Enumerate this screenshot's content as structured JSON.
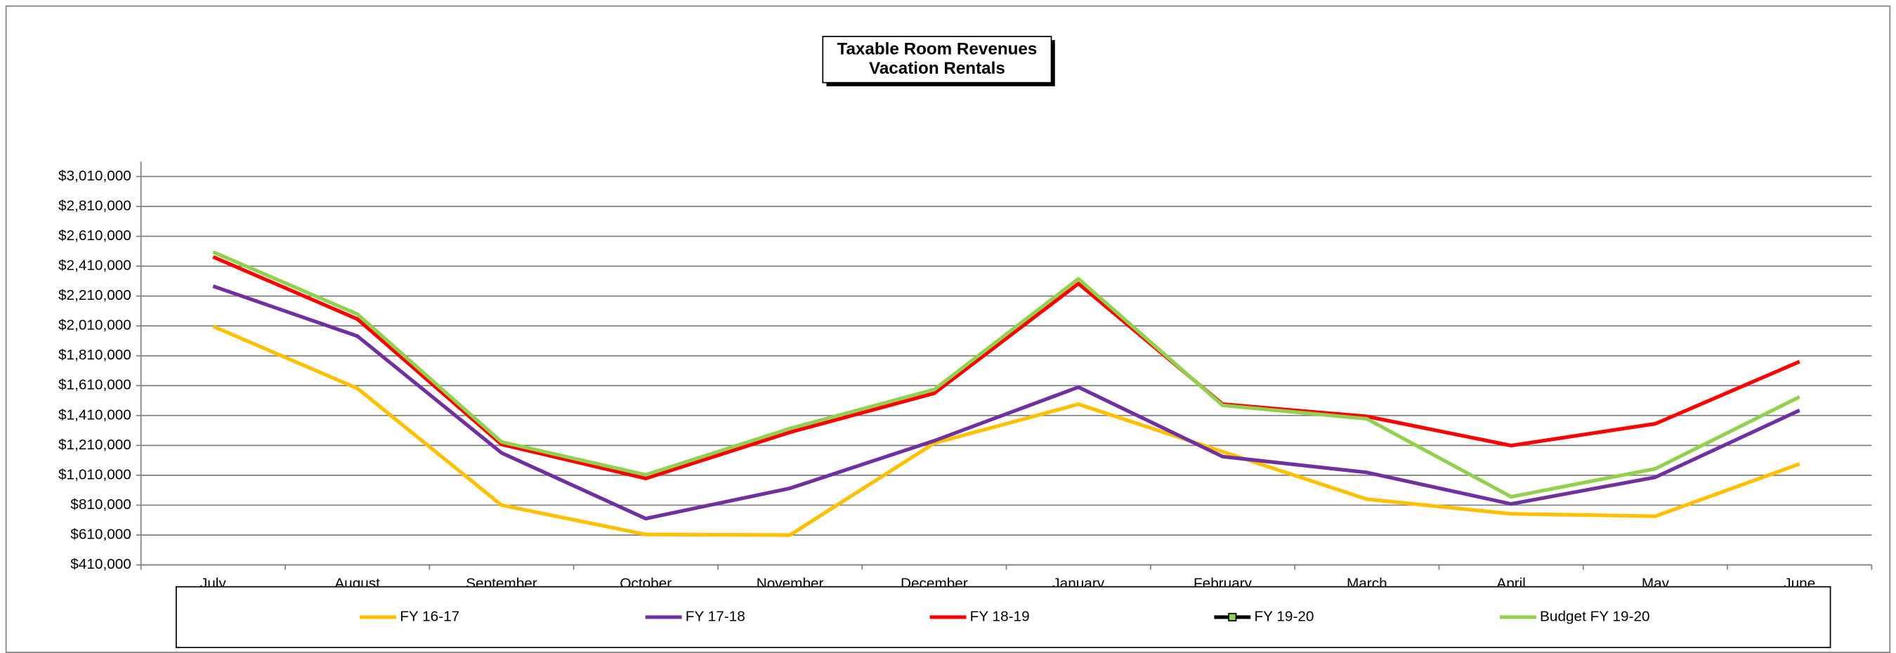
{
  "chart_data": {
    "type": "line",
    "title": "Taxable Room Revenues",
    "subtitle": "Vacation Rentals",
    "categories": [
      "July",
      "August",
      "September",
      "October",
      "November",
      "December",
      "January",
      "February",
      "March",
      "April",
      "May",
      "June"
    ],
    "series": [
      {
        "name": "FY 16-17",
        "color": "#ffc000",
        "values": [
          2007000,
          1592000,
          810000,
          614000,
          610000,
          1225000,
          1486000,
          1168000,
          850000,
          752000,
          736000,
          1086000
        ]
      },
      {
        "name": "FY 17-18",
        "color": "#7030a0",
        "values": [
          2276000,
          1942000,
          1160000,
          720000,
          923000,
          1241000,
          1600000,
          1135000,
          1029000,
          818000,
          997000,
          1445000
        ]
      },
      {
        "name": "FY 18-19",
        "color": "#ff0000",
        "values": [
          2472000,
          2056000,
          1217000,
          989000,
          1298000,
          1559000,
          2293000,
          1486000,
          1404000,
          1209000,
          1355000,
          1771000
        ]
      },
      {
        "name": "FY 19-20",
        "color": "#000000",
        "marker_color": "#92d050",
        "values": [
          null,
          null,
          null,
          null,
          null,
          null,
          null,
          null,
          null,
          null,
          null,
          null
        ]
      },
      {
        "name": "Budget FY 19-20",
        "color": "#92d050",
        "values": [
          2505000,
          2089000,
          1233000,
          1013000,
          1323000,
          1584000,
          2325000,
          1478000,
          1388000,
          866000,
          1054000,
          1535000
        ]
      }
    ],
    "ylim": [
      410000,
      3110000
    ],
    "yticks": [
      {
        "value": 410000,
        "label": "$410,000"
      },
      {
        "value": 610000,
        "label": "$610,000"
      },
      {
        "value": 810000,
        "label": "$810,000"
      },
      {
        "value": 1010000,
        "label": "$1,010,000"
      },
      {
        "value": 1210000,
        "label": "$1,210,000"
      },
      {
        "value": 1410000,
        "label": "$1,410,000"
      },
      {
        "value": 1610000,
        "label": "$1,610,000"
      },
      {
        "value": 1810000,
        "label": "$1,810,000"
      },
      {
        "value": 2010000,
        "label": "$2,010,000"
      },
      {
        "value": 2210000,
        "label": "$2,210,000"
      },
      {
        "value": 2410000,
        "label": "$2,410,000"
      },
      {
        "value": 2610000,
        "label": "$2,610,000"
      },
      {
        "value": 2810000,
        "label": "$2,810,000"
      },
      {
        "value": 3010000,
        "label": "$3,010,000"
      }
    ],
    "grid": true,
    "legend": "bottom"
  }
}
